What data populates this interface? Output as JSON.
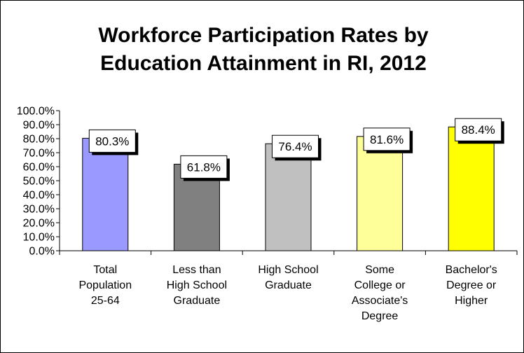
{
  "chart_data": {
    "type": "bar",
    "title_lines": [
      "Workforce Participation Rates by",
      "Education Attainment in RI, 2012"
    ],
    "categories": [
      [
        "Total",
        "Population",
        "25-64"
      ],
      [
        "Less than",
        "High School",
        "Graduate"
      ],
      [
        "High School",
        "Graduate"
      ],
      [
        "Some",
        "College or",
        "Associate's",
        "Degree"
      ],
      [
        "Bachelor's",
        "Degree or",
        "Higher"
      ]
    ],
    "values": [
      80.3,
      61.8,
      76.4,
      81.6,
      88.4
    ],
    "data_labels": [
      "80.3%",
      "61.8%",
      "76.4%",
      "81.6%",
      "88.4%"
    ],
    "bar_colors": [
      "#9999ff",
      "#808080",
      "#c0c0c0",
      "#ffff99",
      "#ffff00"
    ],
    "ylim": [
      0,
      100
    ],
    "yticks": [
      "0.0%",
      "10.0%",
      "20.0%",
      "30.0%",
      "40.0%",
      "50.0%",
      "60.0%",
      "70.0%",
      "80.0%",
      "90.0%",
      "100.0%"
    ],
    "grid": false,
    "legend": "none",
    "xlabel": "",
    "ylabel": ""
  }
}
